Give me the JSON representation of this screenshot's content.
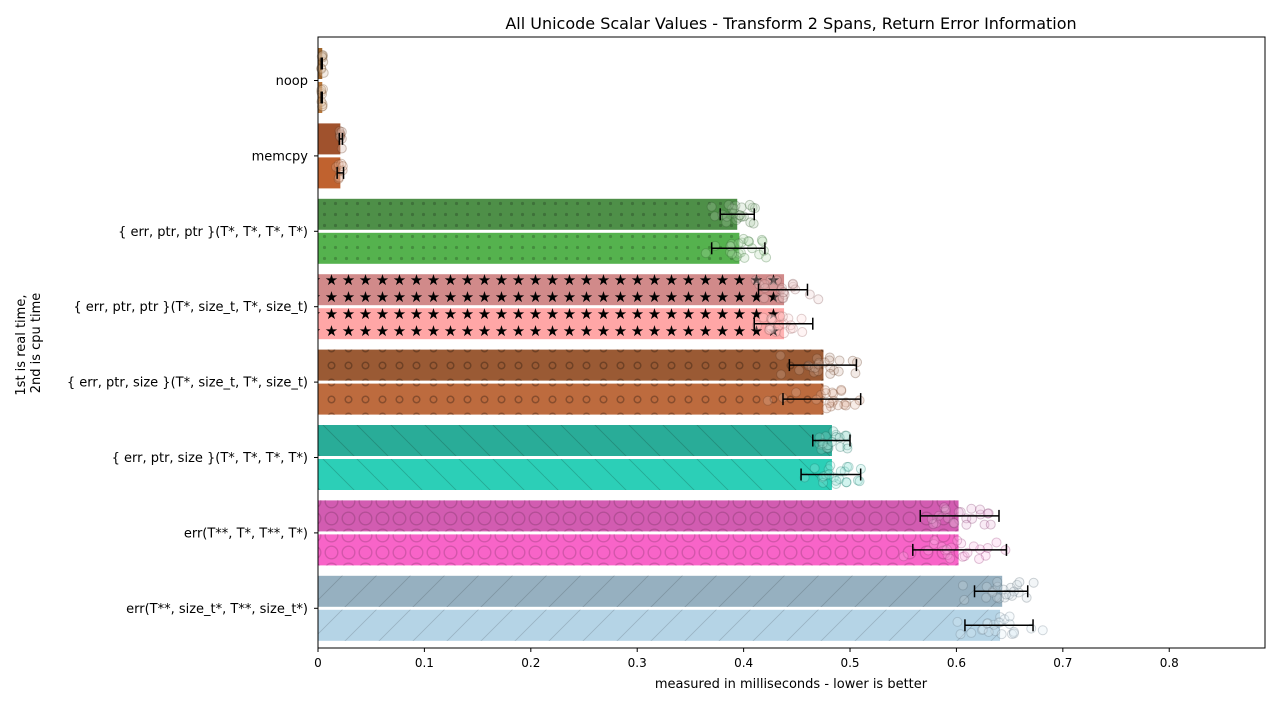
{
  "chart_data": {
    "type": "bar",
    "orientation": "horizontal",
    "title": "All Unicode Scalar Values - Transform 2 Spans, Return Error Information",
    "xlabel": "measured in milliseconds - lower is better",
    "ylabel_lines": [
      "1st is real time,",
      "2nd is cpu time"
    ],
    "xlim": [
      0,
      0.89
    ],
    "xticks": [
      "0",
      "0.1",
      "0.2",
      "0.3",
      "0.4",
      "0.5",
      "0.6",
      "0.7",
      "0.8"
    ],
    "xtick_values": [
      0,
      0.1,
      0.2,
      0.3,
      0.4,
      0.5,
      0.6,
      0.7,
      0.8
    ],
    "grid": false,
    "categories": [
      "noop",
      "memcpy",
      "{ err, ptr, ptr }(T*, T*, T*, T*)",
      "{ err, ptr, ptr }(T*, size_t, T*, size_t)",
      "{ err, ptr, size }(T*, size_t, T*, size_t)",
      "{ err, ptr, size }(T*, T*, T*, T*)",
      "err(T**, T*, T**, T*)",
      "err(T**, size_t*, T**, size_t*)"
    ],
    "series": [
      {
        "values": [
          0.004,
          0.021,
          0.394,
          0.438,
          0.475,
          0.483,
          0.602,
          0.643
        ],
        "err_low": [
          0.003,
          0.02,
          0.378,
          0.414,
          0.443,
          0.465,
          0.566,
          0.617
        ],
        "err_high": [
          0.004,
          0.023,
          0.41,
          0.46,
          0.506,
          0.5,
          0.64,
          0.667
        ]
      },
      {
        "values": [
          0.004,
          0.021,
          0.396,
          0.438,
          0.475,
          0.483,
          0.602,
          0.641
        ],
        "err_low": [
          0.003,
          0.018,
          0.37,
          0.41,
          0.437,
          0.454,
          0.559,
          0.608
        ],
        "err_high": [
          0.004,
          0.024,
          0.42,
          0.465,
          0.51,
          0.51,
          0.647,
          0.672
        ]
      }
    ],
    "colors": [
      [
        "#a0672e",
        "#b9783b"
      ],
      [
        "#a0522d",
        "#c0622f"
      ],
      [
        "#4e8f48",
        "#55b24e"
      ],
      [
        "#d18a8a",
        "#ffa6a6"
      ],
      [
        "#9a5a34",
        "#bd6b3e"
      ],
      [
        "#29ac98",
        "#2ccfb7"
      ],
      [
        "#d25cb1",
        "#f864c8"
      ],
      [
        "#96b0c0",
        "#b5d4e6"
      ]
    ],
    "patterns": [
      "plain",
      "plain",
      "dots",
      "stars",
      "rings",
      "backslash",
      "big-rings",
      "slash"
    ]
  }
}
